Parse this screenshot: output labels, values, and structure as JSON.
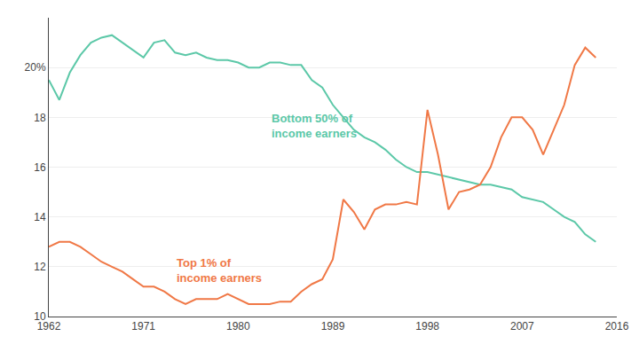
{
  "chart_data": {
    "type": "line",
    "x": [
      1962,
      1963,
      1964,
      1965,
      1966,
      1967,
      1968,
      1969,
      1970,
      1971,
      1972,
      1973,
      1974,
      1975,
      1976,
      1977,
      1978,
      1979,
      1980,
      1981,
      1982,
      1983,
      1984,
      1985,
      1986,
      1987,
      1988,
      1989,
      1990,
      1991,
      1992,
      1993,
      1994,
      1995,
      1996,
      1997,
      1998,
      1999,
      2000,
      2001,
      2002,
      2003,
      2004,
      2005,
      2006,
      2007,
      2008,
      2009,
      2010,
      2011,
      2012,
      2013,
      2014
    ],
    "series": [
      {
        "color": "#5CC8A8",
        "values": [
          19.5,
          18.7,
          19.8,
          20.5,
          21.0,
          21.2,
          21.3,
          21.0,
          20.7,
          20.4,
          21.0,
          21.1,
          20.6,
          20.5,
          20.6,
          20.4,
          20.3,
          20.3,
          20.2,
          20.0,
          20.0,
          20.2,
          20.2,
          20.1,
          20.1,
          19.5,
          19.2,
          18.5,
          18.0,
          17.5,
          17.2,
          17.0,
          16.7,
          16.3,
          16.0,
          15.8,
          15.8,
          15.7,
          15.6,
          15.5,
          15.4,
          15.3,
          15.3,
          15.2,
          15.1,
          14.8,
          14.7,
          14.6,
          14.3,
          14.0,
          13.8,
          13.3,
          13.0
        ]
      },
      {
        "color": "#F07846",
        "values": [
          12.8,
          13.0,
          13.0,
          12.8,
          12.5,
          12.2,
          12.0,
          11.8,
          11.5,
          11.2,
          11.2,
          11.0,
          10.7,
          10.5,
          10.7,
          10.7,
          10.7,
          10.9,
          10.7,
          10.5,
          10.5,
          10.5,
          10.6,
          10.6,
          11.0,
          11.3,
          11.5,
          12.3,
          14.7,
          14.2,
          13.5,
          14.3,
          14.5,
          14.5,
          14.6,
          14.5,
          18.3,
          16.5,
          14.3,
          15.0,
          15.1,
          15.3,
          16.0,
          17.2,
          18.0,
          18.0,
          17.5,
          16.5,
          17.5,
          18.5,
          20.1,
          20.8,
          20.4
        ]
      }
    ],
    "xlim": [
      1962,
      2016
    ],
    "ylim": [
      10,
      22
    ],
    "xticks": [
      1962,
      1971,
      1980,
      1989,
      1998,
      2007,
      2016
    ],
    "yticks": [
      10,
      12,
      14,
      16,
      18,
      {
        "value": 20,
        "label": "20%"
      }
    ],
    "grid": "y",
    "annotations": [
      {
        "text": "Bottom 50% of\nincome earners",
        "x": 1983,
        "y": 18.3,
        "color": "#5CC8A8"
      },
      {
        "text": "Top 1% of\nincome earners",
        "x": 1974,
        "y": 12.5,
        "color": "#F07846"
      }
    ]
  }
}
